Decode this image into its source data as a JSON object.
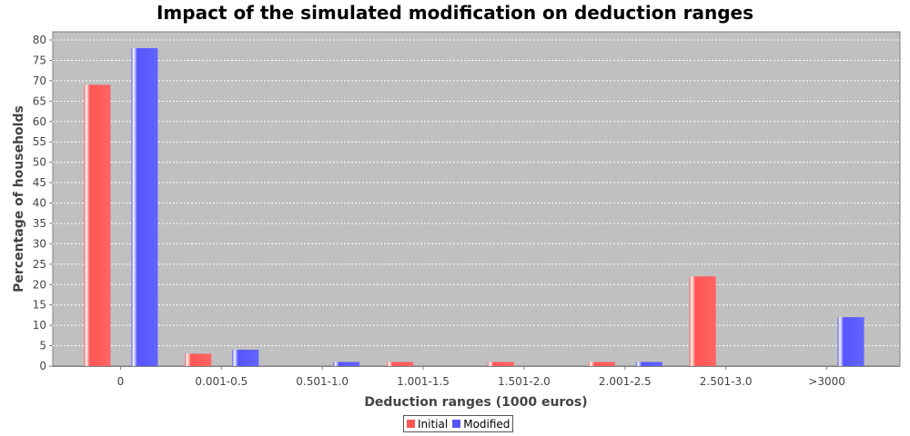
{
  "chart_data": {
    "type": "bar",
    "title": "Impact of the simulated modification on deduction ranges",
    "xlabel": "Deduction ranges (1000 euros)",
    "ylabel": "Percentage of households",
    "categories": [
      "0",
      "0.001-0.5",
      "0.501-1.0",
      "1.001-1.5",
      "1.501-2.0",
      "2.001-2.5",
      "2.501-3.0",
      ">3000"
    ],
    "series": [
      {
        "name": "Initial",
        "color": "#ff5555",
        "values": [
          69,
          3,
          0,
          1,
          1,
          1,
          22,
          0
        ]
      },
      {
        "name": "Modified",
        "color": "#5555ff",
        "values": [
          78,
          4,
          1,
          0,
          0,
          1,
          0,
          12
        ]
      }
    ],
    "ylim": [
      0,
      80
    ],
    "yticks": [
      0,
      5,
      10,
      15,
      20,
      25,
      30,
      35,
      40,
      45,
      50,
      55,
      60,
      65,
      70,
      75,
      80
    ],
    "grid": true,
    "plot_background": "#c0c0c0",
    "legend_position": "bottom-center"
  }
}
